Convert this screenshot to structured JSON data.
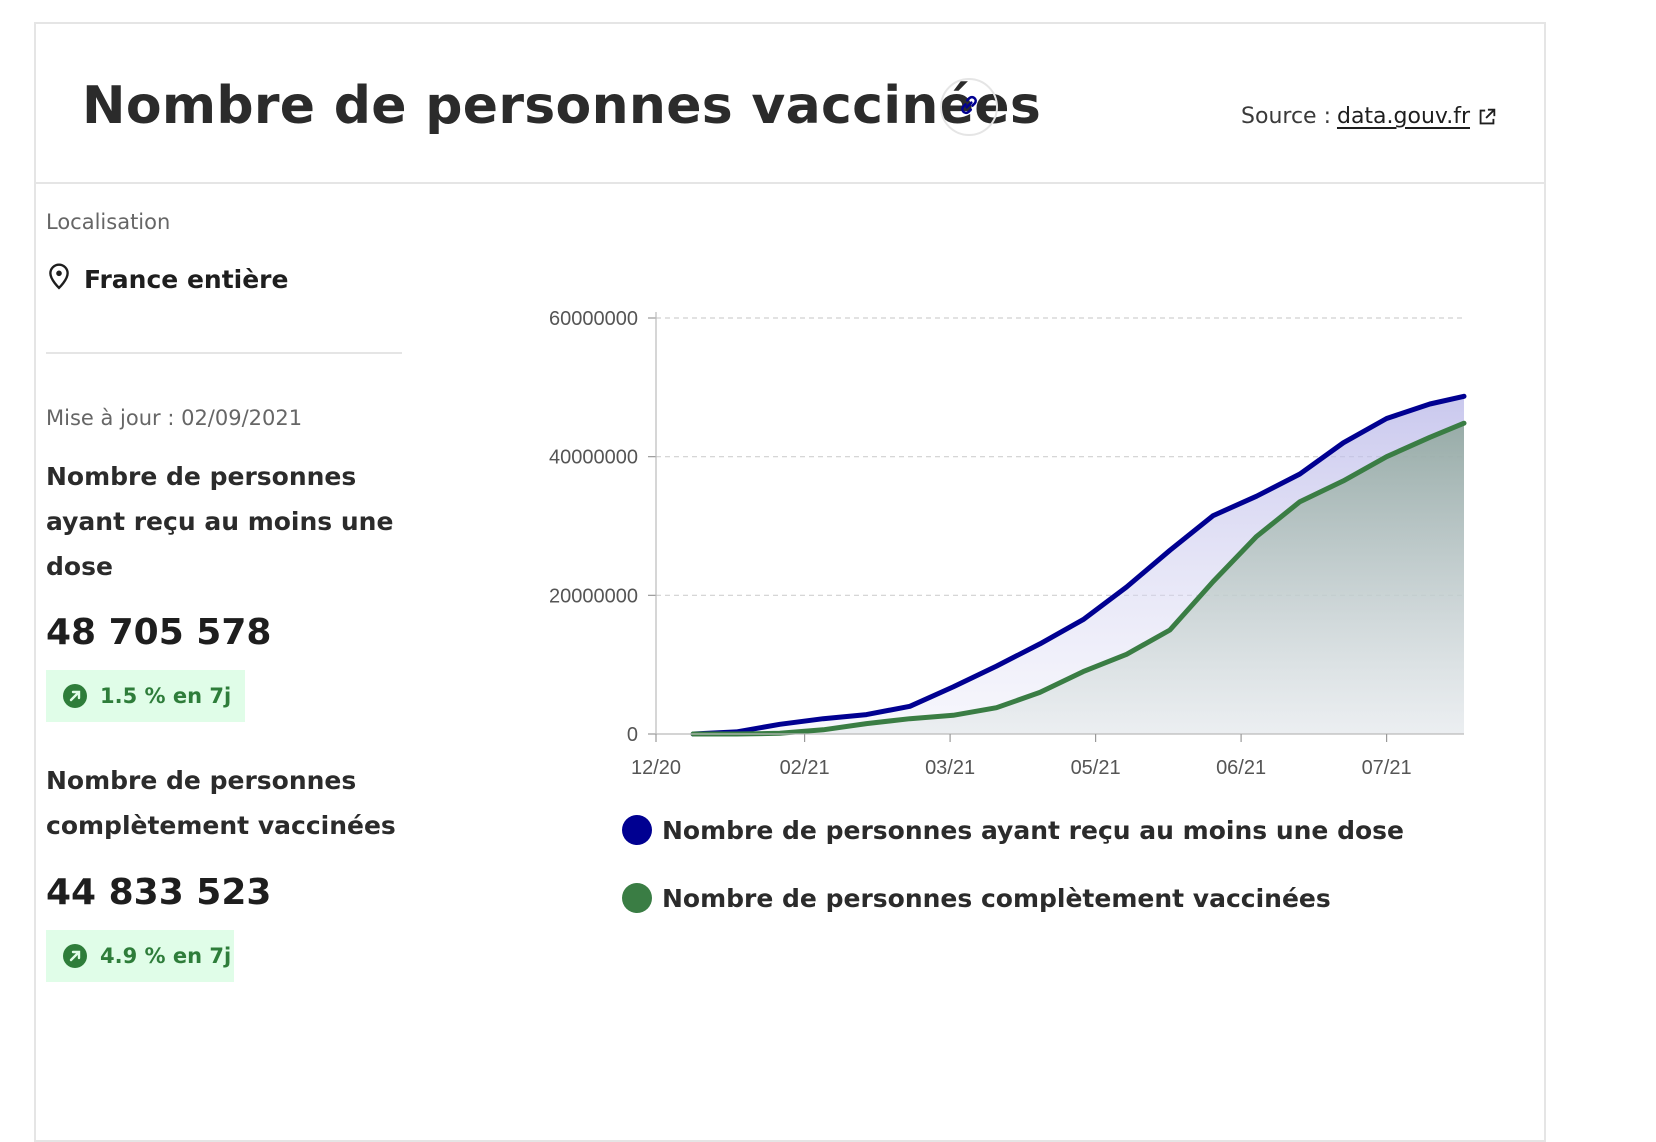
{
  "header": {
    "title": "Nombre de personnes vaccinées",
    "source_label": "Source :",
    "source_link": "data.gouv.fr"
  },
  "sidebar": {
    "location_label": "Localisation",
    "location_value": "France entière",
    "updated": "Mise à jour : 02/09/2021",
    "kpis": [
      {
        "label": "Nombre de personnes ayant reçu au moins une dose",
        "value": "48 705 578",
        "trend": "1.5 % en 7j"
      },
      {
        "label": "Nombre de personnes complètement vaccinées",
        "value": "44 833 523",
        "trend": "4.9 % en 7j"
      }
    ]
  },
  "colors": {
    "series_1": "#000091",
    "series_2": "#3a7d44",
    "badge_bg": "#e0fde8",
    "badge_text": "#2e7d3a"
  },
  "chart_data": {
    "type": "area",
    "x_ticks": [
      "12/20",
      "02/21",
      "03/21",
      "05/21",
      "06/21",
      "07/21"
    ],
    "y_ticks": [
      "0",
      "20000000",
      "40000000",
      "60000000"
    ],
    "ylim": [
      0,
      60000000
    ],
    "grid": true,
    "legend_position": "bottom",
    "x": [
      "2020-12-27",
      "2021-01-10",
      "2021-01-24",
      "2021-02-07",
      "2021-02-21",
      "2021-03-07",
      "2021-03-21",
      "2021-04-04",
      "2021-04-18",
      "2021-05-02",
      "2021-05-16",
      "2021-05-30",
      "2021-06-13",
      "2021-06-27",
      "2021-07-11",
      "2021-07-25",
      "2021-08-08",
      "2021-08-22",
      "2021-09-02"
    ],
    "series": [
      {
        "name": "Nombre de personnes ayant reçu au moins une dose",
        "values": [
          0,
          300000,
          1400000,
          2200000,
          2800000,
          4000000,
          6800000,
          9800000,
          13000000,
          16500000,
          21200000,
          26500000,
          31500000,
          34300000,
          37500000,
          42000000,
          45500000,
          47600000,
          48705578
        ]
      },
      {
        "name": "Nombre de personnes complètement vaccinées",
        "values": [
          0,
          0,
          100000,
          600000,
          1500000,
          2200000,
          2700000,
          3800000,
          6000000,
          9000000,
          11500000,
          15000000,
          22000000,
          28500000,
          33500000,
          36500000,
          40000000,
          42800000,
          44833523
        ]
      }
    ]
  }
}
